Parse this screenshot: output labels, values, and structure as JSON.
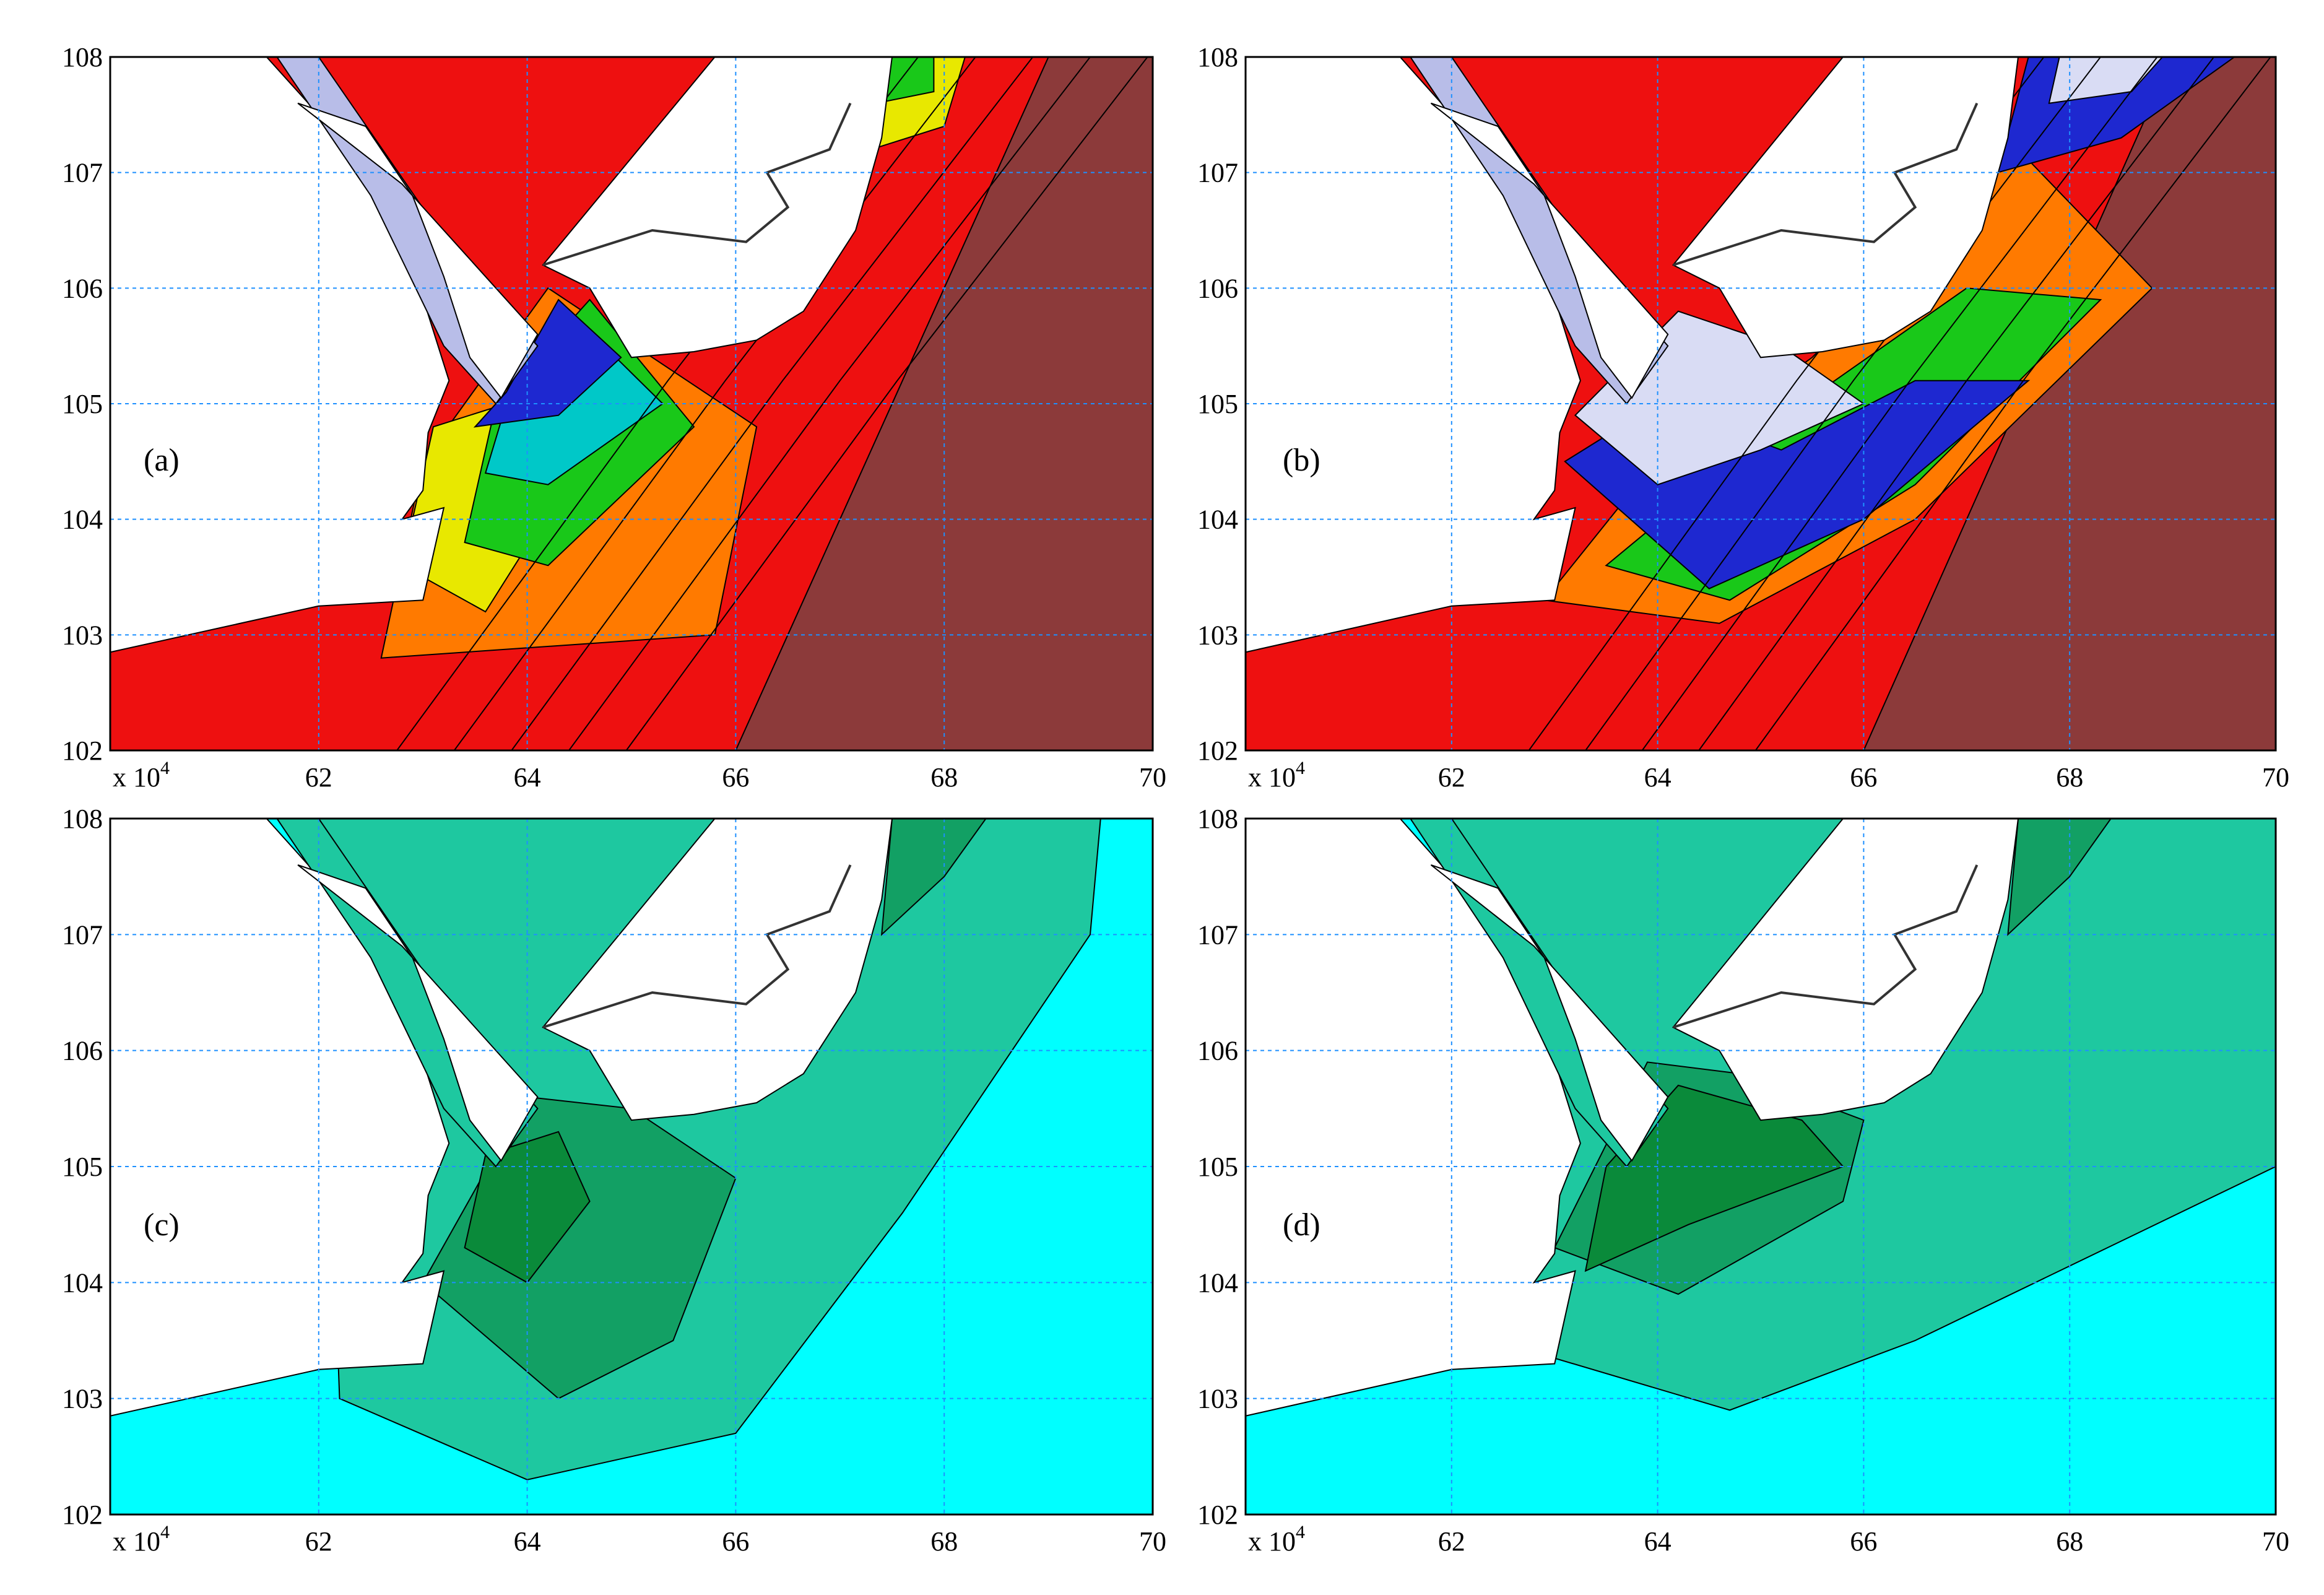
{
  "figure": {
    "panels": [
      "(a)",
      "(b)",
      "(c)",
      "(d)"
    ],
    "x_multiplier_label": "x 10",
    "x_multiplier_exponent": "4"
  },
  "chart_data": [
    {
      "type": "heatmap",
      "panel_label": "(a)",
      "x_ticks": [
        "62",
        "64",
        "66",
        "68",
        "70"
      ],
      "y_ticks": [
        "102",
        "103",
        "104",
        "105",
        "106",
        "107",
        "108"
      ],
      "x_tick_values": [
        62,
        64,
        66,
        68,
        70
      ],
      "y_tick_values": [
        102,
        103,
        104,
        105,
        106,
        107,
        108
      ],
      "xlim": [
        60,
        70
      ],
      "ylim": [
        102,
        108
      ],
      "grid": true,
      "colormap": [
        "#d9dcf4",
        "#1e28d0",
        "#00c8c8",
        "#19c819",
        "#e8e800",
        "#ff7a00",
        "#ee1010",
        "#8c3a3a"
      ]
    },
    {
      "type": "heatmap",
      "panel_label": "(b)",
      "x_ticks": [
        "62",
        "64",
        "66",
        "68",
        "70"
      ],
      "y_ticks": [
        "102",
        "103",
        "104",
        "105",
        "106",
        "107",
        "108"
      ],
      "x_tick_values": [
        62,
        64,
        66,
        68,
        70
      ],
      "y_tick_values": [
        102,
        103,
        104,
        105,
        106,
        107,
        108
      ],
      "xlim": [
        60,
        70
      ],
      "ylim": [
        102,
        108
      ],
      "grid": true,
      "colormap": [
        "#d9dcf4",
        "#1e28d0",
        "#00c8c8",
        "#19c819",
        "#e8e800",
        "#ff7a00",
        "#ee1010",
        "#8c3a3a"
      ]
    },
    {
      "type": "heatmap",
      "panel_label": "(c)",
      "x_ticks": [
        "62",
        "64",
        "66",
        "68",
        "70"
      ],
      "y_ticks": [
        "102",
        "103",
        "104",
        "105",
        "106",
        "107",
        "108"
      ],
      "x_tick_values": [
        62,
        64,
        66,
        68,
        70
      ],
      "y_tick_values": [
        102,
        103,
        104,
        105,
        106,
        107,
        108
      ],
      "xlim": [
        60,
        70
      ],
      "ylim": [
        102,
        108
      ],
      "grid": true,
      "colormap": [
        "#00ffff",
        "#66e6d0",
        "#1ec8a0",
        "#12a064",
        "#0a8a3a"
      ]
    },
    {
      "type": "heatmap",
      "panel_label": "(d)",
      "x_ticks": [
        "62",
        "64",
        "66",
        "68",
        "70"
      ],
      "y_ticks": [
        "102",
        "103",
        "104",
        "105",
        "106",
        "107",
        "108"
      ],
      "x_tick_values": [
        62,
        64,
        66,
        68,
        70
      ],
      "y_tick_values": [
        102,
        103,
        104,
        105,
        106,
        107,
        108
      ],
      "xlim": [
        60,
        70
      ],
      "ylim": [
        102,
        108
      ],
      "grid": true,
      "colormap": [
        "#00ffff",
        "#66e6d0",
        "#1ec8a0",
        "#12a064",
        "#0a8a3a"
      ]
    }
  ]
}
